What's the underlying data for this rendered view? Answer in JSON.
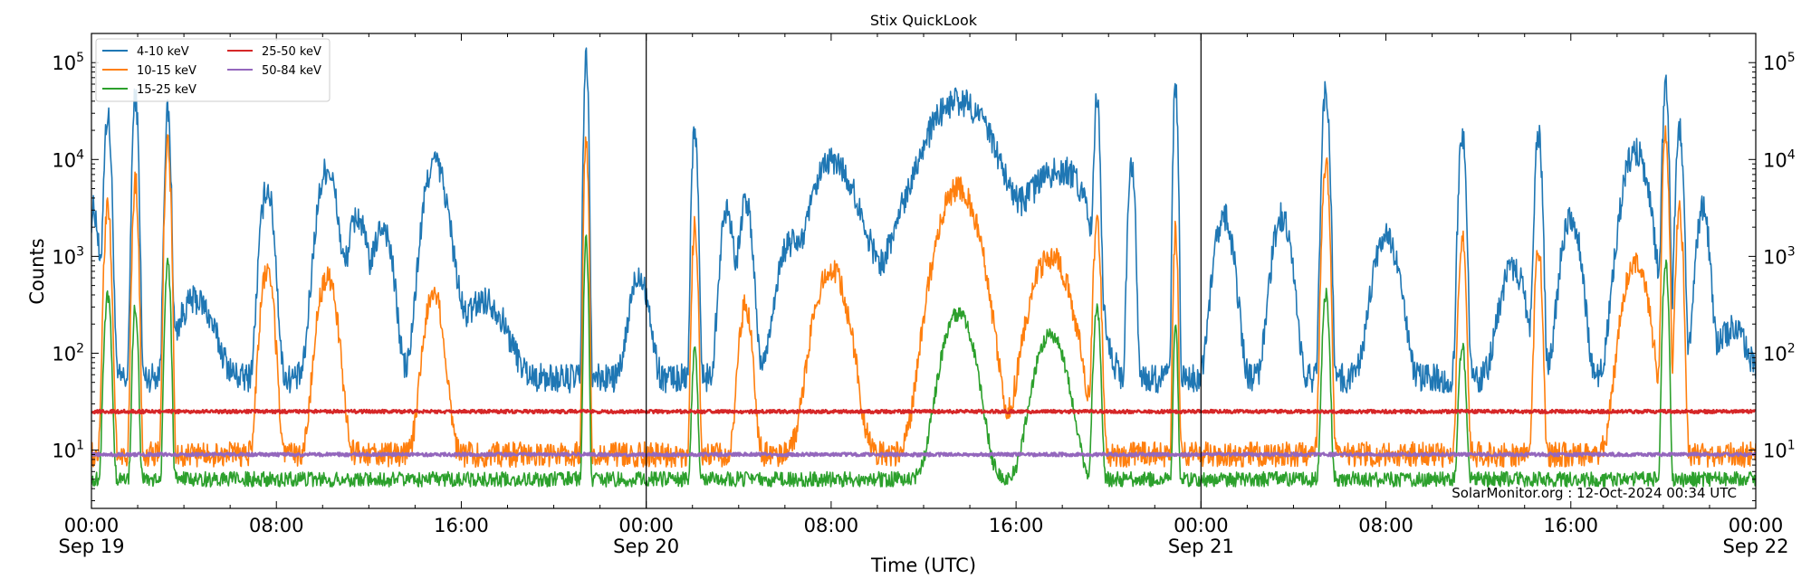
{
  "chart_data": {
    "type": "line",
    "title": "Stix QuickLook",
    "xlabel": "Time (UTC)",
    "ylabel": "Counts",
    "yscale": "log",
    "ylim": [
      2.5,
      200000
    ],
    "xlim_hours": [
      0,
      72
    ],
    "x_unit": "hours since Sep 19 00:00 UTC",
    "grid": false,
    "legend_placement": "top-left",
    "x_ticks": [
      {
        "line1": "00:00",
        "line2": "Sep 19"
      },
      {
        "line1": "08:00",
        "line2": ""
      },
      {
        "line1": "16:00",
        "line2": ""
      },
      {
        "line1": "00:00",
        "line2": "Sep 20"
      },
      {
        "line1": "08:00",
        "line2": ""
      },
      {
        "line1": "16:00",
        "line2": ""
      },
      {
        "line1": "00:00",
        "line2": "Sep 21"
      },
      {
        "line1": "08:00",
        "line2": ""
      },
      {
        "line1": "16:00",
        "line2": ""
      },
      {
        "line1": "00:00",
        "line2": "Sep 22"
      }
    ],
    "y_ticks": [
      {
        "base": "10",
        "exp": "1"
      },
      {
        "base": "10",
        "exp": "2"
      },
      {
        "base": "10",
        "exp": "3"
      },
      {
        "base": "10",
        "exp": "4"
      },
      {
        "base": "10",
        "exp": "5"
      }
    ],
    "day_boundaries_hours": [
      24,
      48
    ],
    "watermark": "SolarMonitor.org : 12-Oct-2024 00:34 UTC",
    "series": [
      {
        "name": "4-10 keV",
        "color": "#1f77b4",
        "baseline": 55,
        "noise": 0.35,
        "peaks": [
          [
            0.1,
            3000,
            0.15
          ],
          [
            0.7,
            28000,
            0.1
          ],
          [
            1.9,
            45000,
            0.08
          ],
          [
            3.3,
            30000,
            0.08
          ],
          [
            4.5,
            300,
            0.6
          ],
          [
            7.6,
            5000,
            0.2
          ],
          [
            10.2,
            8000,
            0.3
          ],
          [
            11.5,
            2500,
            0.3
          ],
          [
            12.6,
            2000,
            0.3
          ],
          [
            14.8,
            6000,
            0.3
          ],
          [
            15.0,
            3800,
            0.4
          ],
          [
            17.0,
            300,
            0.7
          ],
          [
            21.4,
            110000,
            0.06
          ],
          [
            23.7,
            600,
            0.3
          ],
          [
            26.1,
            22000,
            0.08
          ],
          [
            27.5,
            3000,
            0.2
          ],
          [
            28.3,
            3500,
            0.2
          ],
          [
            30.2,
            1200,
            0.4
          ],
          [
            32.0,
            9000,
            0.6
          ],
          [
            33.0,
            2000,
            0.6
          ],
          [
            35.5,
            1500,
            0.8
          ],
          [
            37.5,
            38000,
            1.0
          ],
          [
            38.5,
            2500,
            1.2
          ],
          [
            41.5,
            6500,
            0.8
          ],
          [
            42.5,
            3500,
            0.5
          ],
          [
            43.5,
            40000,
            0.08
          ],
          [
            45.0,
            8000,
            0.1
          ],
          [
            46.9,
            60000,
            0.06
          ],
          [
            49.0,
            2500,
            0.3
          ],
          [
            51.5,
            2500,
            0.3
          ],
          [
            53.4,
            50000,
            0.1
          ],
          [
            56.0,
            1500,
            0.4
          ],
          [
            59.3,
            18000,
            0.1
          ],
          [
            61.5,
            700,
            0.4
          ],
          [
            62.6,
            18000,
            0.1
          ],
          [
            64.0,
            2500,
            0.3
          ],
          [
            66.8,
            12000,
            0.4
          ],
          [
            68.1,
            60000,
            0.08
          ],
          [
            68.7,
            22000,
            0.1
          ],
          [
            69.7,
            3000,
            0.2
          ],
          [
            71.0,
            120,
            0.5
          ]
        ]
      },
      {
        "name": "10-15 keV",
        "color": "#ff7f0e",
        "baseline": 9,
        "noise": 0.3,
        "peaks": [
          [
            0.7,
            3000,
            0.1
          ],
          [
            1.9,
            6000,
            0.08
          ],
          [
            3.3,
            15000,
            0.08
          ],
          [
            7.6,
            700,
            0.2
          ],
          [
            10.2,
            600,
            0.3
          ],
          [
            14.8,
            400,
            0.3
          ],
          [
            21.4,
            15000,
            0.06
          ],
          [
            26.1,
            2000,
            0.08
          ],
          [
            28.3,
            300,
            0.2
          ],
          [
            32.0,
            700,
            0.5
          ],
          [
            37.5,
            5000,
            0.6
          ],
          [
            41.5,
            1000,
            0.6
          ],
          [
            43.5,
            2000,
            0.1
          ],
          [
            46.9,
            1800,
            0.06
          ],
          [
            53.4,
            9000,
            0.1
          ],
          [
            59.3,
            1500,
            0.1
          ],
          [
            62.6,
            1200,
            0.1
          ],
          [
            66.8,
            800,
            0.4
          ],
          [
            68.1,
            18000,
            0.08
          ],
          [
            68.7,
            3000,
            0.1
          ]
        ]
      },
      {
        "name": "15-25 keV",
        "color": "#2ca02c",
        "baseline": 5,
        "noise": 0.18,
        "peaks": [
          [
            0.7,
            400,
            0.1
          ],
          [
            1.9,
            300,
            0.08
          ],
          [
            3.3,
            900,
            0.08
          ],
          [
            21.4,
            1500,
            0.06
          ],
          [
            26.1,
            100,
            0.08
          ],
          [
            37.5,
            250,
            0.5
          ],
          [
            41.5,
            150,
            0.5
          ],
          [
            43.5,
            300,
            0.1
          ],
          [
            46.9,
            200,
            0.06
          ],
          [
            53.4,
            400,
            0.1
          ],
          [
            59.3,
            120,
            0.1
          ],
          [
            68.1,
            900,
            0.08
          ]
        ]
      },
      {
        "name": "25-50 keV",
        "color": "#d62728",
        "baseline": 25,
        "noise": 0.04,
        "peaks": []
      },
      {
        "name": "50-84 keV",
        "color": "#9467bd",
        "baseline": 9,
        "noise": 0.04,
        "peaks": []
      }
    ]
  }
}
